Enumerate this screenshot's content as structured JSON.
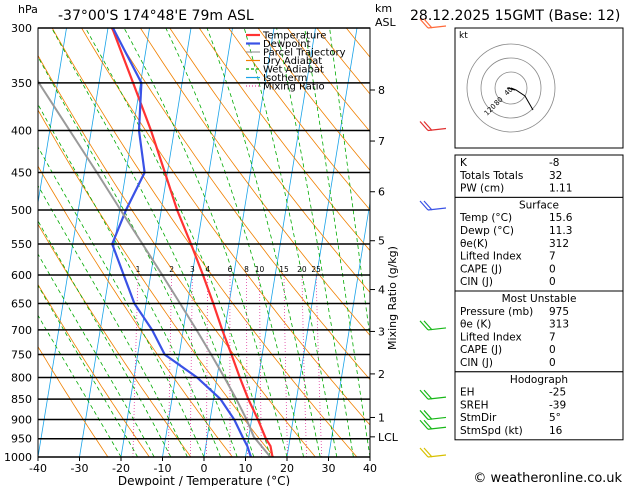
{
  "header": {
    "location": "-37°00'S  174°48'E  79m  ASL",
    "valid": "28.12.2025  15GMT  (Base: 12)",
    "left_unit": "hPa",
    "right_unit_1": "km",
    "right_unit_2": "ASL"
  },
  "footer": {
    "copyright": "© weatheronline.co.uk"
  },
  "chart_data": {
    "type": "line",
    "chart_kind": "skew-T log-P",
    "xlabel": "Dewpoint / Temperature (°C)",
    "ylabel_right": "Mixing Ratio (g/kg)",
    "x_ticks": [
      -40,
      -30,
      -20,
      -10,
      0,
      10,
      20,
      30,
      40
    ],
    "pressure_levels": [
      300,
      350,
      400,
      450,
      500,
      550,
      600,
      650,
      700,
      750,
      800,
      850,
      900,
      950,
      1000
    ],
    "height_km_ticks": [
      {
        "label": "8",
        "p": 357
      },
      {
        "label": "7",
        "p": 412
      },
      {
        "label": "6",
        "p": 475
      },
      {
        "label": "5",
        "p": 545
      },
      {
        "label": "4",
        "p": 625
      },
      {
        "label": "3",
        "p": 703
      },
      {
        "label": "2",
        "p": 792
      },
      {
        "label": "1",
        "p": 895
      },
      {
        "label": "LCL",
        "p": 945
      }
    ],
    "mixing_ratio_labels": [
      "1",
      "2",
      "3",
      "4",
      "6",
      "8",
      "10",
      "15",
      "20",
      "25"
    ],
    "legend": [
      {
        "name": "Temperature",
        "color": "#ff3333"
      },
      {
        "name": "Dewpoint",
        "color": "#3a52e6"
      },
      {
        "name": "Parcel Trajectory",
        "color": "#9a9a9a"
      },
      {
        "name": "Dry Adiabat",
        "color": "#f08000"
      },
      {
        "name": "Wet Adiabat",
        "color": "#00aa00"
      },
      {
        "name": "Isotherm",
        "color": "#1aa3e8"
      },
      {
        "name": "Mixing Ratio",
        "color": "#e040a0"
      }
    ],
    "series": [
      {
        "name": "Temperature",
        "points": [
          [
            1000,
            16.5
          ],
          [
            970,
            15.6
          ],
          [
            950,
            14.2
          ],
          [
            900,
            11.5
          ],
          [
            850,
            8.4
          ],
          [
            800,
            5.5
          ],
          [
            750,
            2.6
          ],
          [
            700,
            -0.6
          ],
          [
            650,
            -3.8
          ],
          [
            600,
            -7.4
          ],
          [
            550,
            -11.5
          ],
          [
            500,
            -16.2
          ],
          [
            450,
            -20.6
          ],
          [
            400,
            -25.6
          ],
          [
            350,
            -31.8
          ],
          [
            300,
            -39.0
          ]
        ]
      },
      {
        "name": "Dewpoint",
        "points": [
          [
            1000,
            11.3
          ],
          [
            970,
            10.0
          ],
          [
            950,
            8.8
          ],
          [
            900,
            5.8
          ],
          [
            850,
            1.7
          ],
          [
            800,
            -4.8
          ],
          [
            750,
            -13.5
          ],
          [
            700,
            -17.5
          ],
          [
            650,
            -22.8
          ],
          [
            600,
            -26.5
          ],
          [
            550,
            -30.5
          ],
          [
            500,
            -28.5
          ],
          [
            450,
            -25.5
          ],
          [
            400,
            -28.5
          ],
          [
            350,
            -29.8
          ],
          [
            300,
            -38.8
          ]
        ]
      },
      {
        "name": "Parcel Trajectory",
        "points": [
          [
            1000,
            16.0
          ],
          [
            945,
            11.2
          ],
          [
            900,
            8.8
          ],
          [
            850,
            5.5
          ],
          [
            800,
            1.8
          ],
          [
            750,
            -2.3
          ],
          [
            700,
            -6.8
          ],
          [
            650,
            -11.8
          ],
          [
            600,
            -17.2
          ],
          [
            550,
            -23.2
          ],
          [
            500,
            -29.8
          ],
          [
            450,
            -37.0
          ],
          [
            400,
            -45.2
          ],
          [
            350,
            -54.5
          ],
          [
            300,
            -63.0
          ]
        ]
      }
    ],
    "hodograph_rings": [
      "20",
      "40",
      "60",
      "80",
      "120"
    ],
    "hodograph_unit": "kt"
  },
  "stats": {
    "block1": [
      {
        "label": "K",
        "value": "-8"
      },
      {
        "label": "Totals Totals",
        "value": "32"
      },
      {
        "label": "PW (cm)",
        "value": "1.11"
      }
    ],
    "surface_title": "Surface",
    "surface": [
      {
        "label": "Temp (°C)",
        "value": "15.6"
      },
      {
        "label": "Dewp (°C)",
        "value": "11.3"
      },
      {
        "label": "θe(K)",
        "value": "312"
      },
      {
        "label": "Lifted Index",
        "value": "7"
      },
      {
        "label": "CAPE (J)",
        "value": "0"
      },
      {
        "label": "CIN (J)",
        "value": "0"
      }
    ],
    "mu_title": "Most Unstable",
    "most_unstable": [
      {
        "label": "Pressure (mb)",
        "value": "975"
      },
      {
        "label": "θe (K)",
        "value": "313"
      },
      {
        "label": "Lifted Index",
        "value": "7"
      },
      {
        "label": "CAPE (J)",
        "value": "0"
      },
      {
        "label": "CIN (J)",
        "value": "0"
      }
    ],
    "hodo_title": "Hodograph",
    "hodograph": [
      {
        "label": "EH",
        "value": "-25"
      },
      {
        "label": "SREH",
        "value": "-39"
      },
      {
        "label": "StmDir",
        "value": "5°"
      },
      {
        "label": "StmSpd (kt)",
        "value": "16"
      }
    ]
  }
}
